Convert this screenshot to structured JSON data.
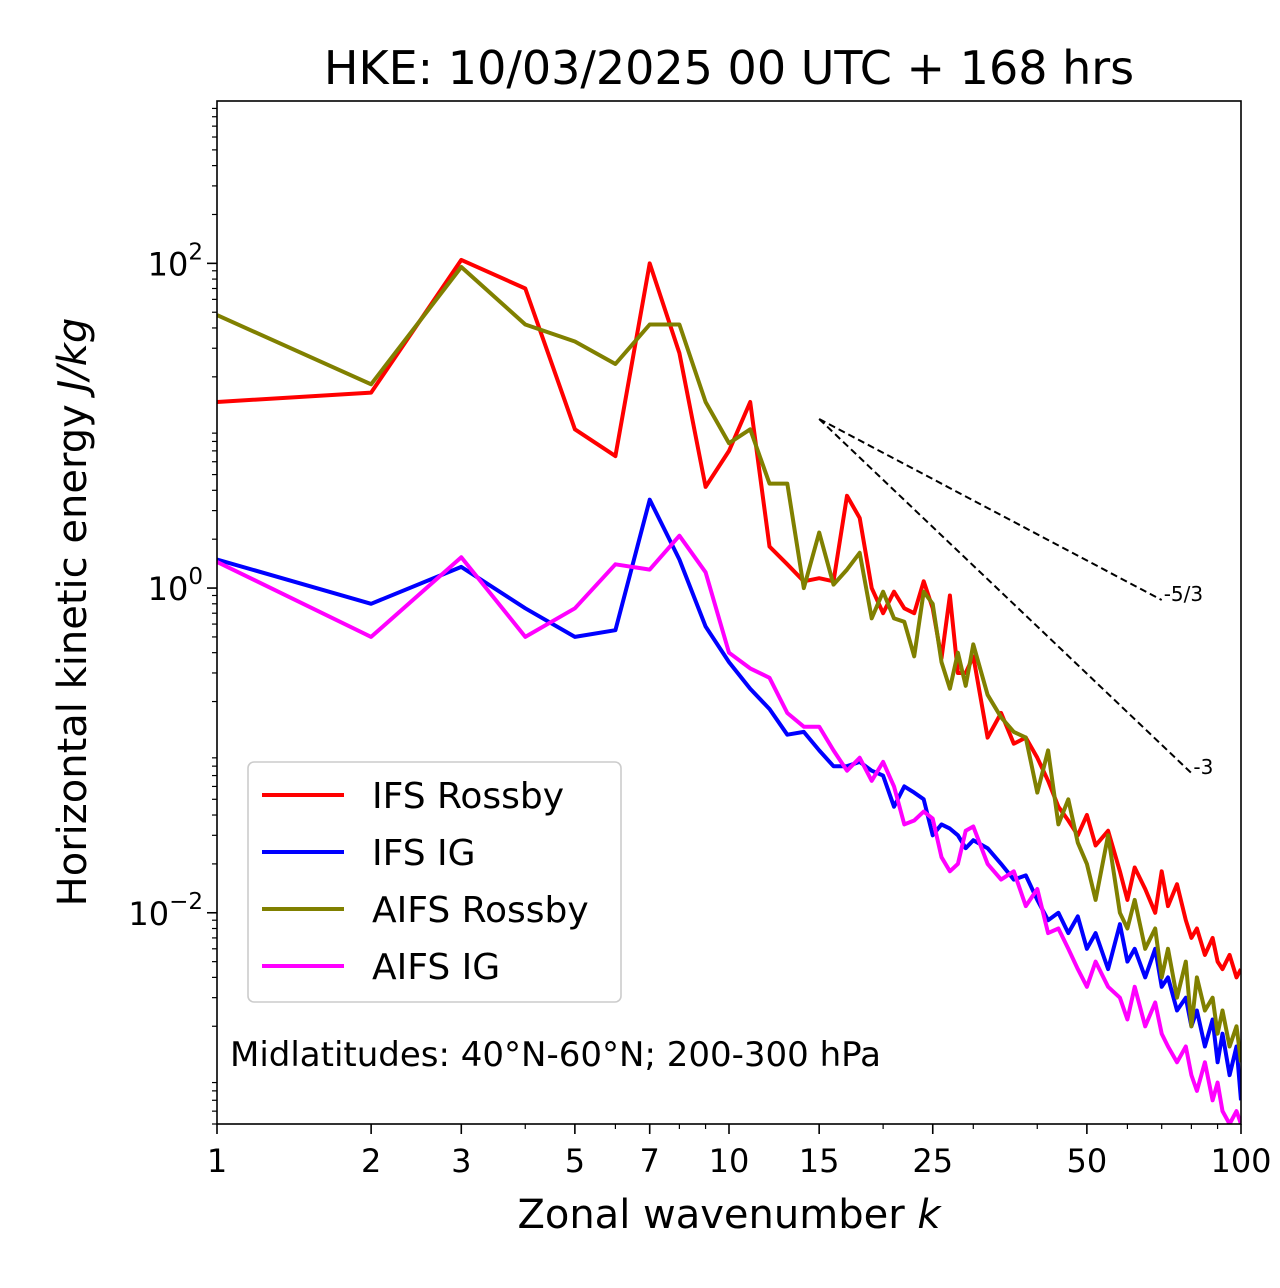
{
  "chart_data": {
    "type": "line",
    "title": "HKE: 10/03/2025 00 UTC + 168 hrs",
    "xlabel": "Zonal wavenumber",
    "xlabel_var": "k",
    "ylabel": "Horizontal kinetic energy",
    "ylabel_unit": "J/kg",
    "x_scale": "log",
    "y_scale": "log",
    "xlim": [
      1,
      100
    ],
    "ylim": [
      0.0005,
      1000
    ],
    "x_ticks": [
      1,
      2,
      3,
      5,
      7,
      10,
      15,
      25,
      50,
      100
    ],
    "x_tick_labels": [
      "1",
      "2",
      "3",
      "5",
      "7",
      "10",
      "15",
      "25",
      "50",
      "100"
    ],
    "y_ticks": [
      {
        "value": 100,
        "base": "10",
        "exp": "2"
      },
      {
        "value": 1,
        "base": "10",
        "exp": "0"
      },
      {
        "value": 0.01,
        "base": "10",
        "exp": "−2"
      }
    ],
    "grid": false,
    "legend_position": "lower-left",
    "annotation": "Midlatitudes: 40°N-60°N; 200-300 hPa",
    "slope_lines": [
      {
        "label": "-5/3",
        "slope": -1.6667,
        "x_start": 15,
        "y_start": 11,
        "x_end": 70
      },
      {
        "label": "-3",
        "slope": -3,
        "x_start": 15,
        "y_start": 11,
        "x_end": 80
      }
    ],
    "series": [
      {
        "name": "IFS Rossby",
        "color": "#ff0000",
        "x": [
          1,
          2,
          3,
          4,
          5,
          6,
          7,
          8,
          9,
          10,
          11,
          12,
          13,
          14,
          15,
          16,
          17,
          18,
          19,
          20,
          21,
          22,
          23,
          24,
          25,
          26,
          27,
          28,
          29,
          30,
          32,
          34,
          36,
          38,
          40,
          42,
          44,
          46,
          48,
          50,
          52,
          55,
          58,
          60,
          62,
          65,
          68,
          70,
          72,
          75,
          78,
          80,
          82,
          85,
          88,
          90,
          92,
          95,
          98,
          100
        ],
        "y": [
          14,
          16,
          105,
          70,
          9.5,
          6.5,
          100,
          28,
          4.2,
          7,
          14,
          1.8,
          1.4,
          1.1,
          1.15,
          1.1,
          3.7,
          2.7,
          1.0,
          0.7,
          0.95,
          0.75,
          0.7,
          1.1,
          0.75,
          0.37,
          0.9,
          0.3,
          0.3,
          0.38,
          0.12,
          0.17,
          0.11,
          0.12,
          0.09,
          0.065,
          0.045,
          0.037,
          0.03,
          0.04,
          0.026,
          0.032,
          0.018,
          0.012,
          0.019,
          0.014,
          0.01,
          0.018,
          0.011,
          0.015,
          0.009,
          0.007,
          0.008,
          0.0055,
          0.007,
          0.005,
          0.0045,
          0.0055,
          0.004,
          0.0045
        ]
      },
      {
        "name": "IFS IG",
        "color": "#0000ff",
        "x": [
          1,
          2,
          3,
          4,
          5,
          6,
          7,
          8,
          9,
          10,
          11,
          12,
          13,
          14,
          15,
          16,
          17,
          18,
          19,
          20,
          21,
          22,
          23,
          24,
          25,
          26,
          27,
          28,
          29,
          30,
          32,
          34,
          36,
          38,
          40,
          42,
          44,
          46,
          48,
          50,
          52,
          55,
          58,
          60,
          62,
          65,
          68,
          70,
          72,
          75,
          78,
          80,
          82,
          85,
          88,
          90,
          92,
          95,
          98,
          100
        ],
        "y": [
          1.5,
          0.8,
          1.35,
          0.75,
          0.5,
          0.55,
          3.5,
          1.5,
          0.58,
          0.35,
          0.24,
          0.18,
          0.125,
          0.13,
          0.1,
          0.08,
          0.08,
          0.085,
          0.075,
          0.07,
          0.045,
          0.06,
          0.055,
          0.05,
          0.03,
          0.035,
          0.033,
          0.03,
          0.025,
          0.028,
          0.025,
          0.02,
          0.016,
          0.017,
          0.012,
          0.009,
          0.01,
          0.0075,
          0.0095,
          0.006,
          0.0075,
          0.0045,
          0.0085,
          0.005,
          0.006,
          0.004,
          0.006,
          0.0035,
          0.004,
          0.0025,
          0.003,
          0.002,
          0.0025,
          0.0015,
          0.0022,
          0.0012,
          0.0018,
          0.001,
          0.0015,
          0.0007
        ]
      },
      {
        "name": "AIFS Rossby",
        "color": "#808000",
        "x": [
          1,
          2,
          3,
          4,
          5,
          6,
          7,
          8,
          9,
          10,
          11,
          12,
          13,
          14,
          15,
          16,
          17,
          18,
          19,
          20,
          21,
          22,
          23,
          24,
          25,
          26,
          27,
          28,
          29,
          30,
          32,
          34,
          36,
          38,
          40,
          42,
          44,
          46,
          48,
          50,
          52,
          55,
          58,
          60,
          62,
          65,
          68,
          70,
          72,
          75,
          78,
          80,
          82,
          85,
          88,
          90,
          92,
          95,
          98,
          100
        ],
        "y": [
          48,
          18,
          95,
          42,
          33,
          24,
          42,
          42,
          14,
          7.8,
          9.5,
          4.4,
          4.4,
          1.0,
          2.2,
          1.05,
          1.3,
          1.65,
          0.65,
          0.95,
          0.65,
          0.62,
          0.38,
          0.95,
          0.8,
          0.35,
          0.24,
          0.4,
          0.25,
          0.45,
          0.22,
          0.16,
          0.13,
          0.12,
          0.055,
          0.1,
          0.035,
          0.05,
          0.027,
          0.02,
          0.012,
          0.03,
          0.01,
          0.008,
          0.012,
          0.006,
          0.008,
          0.004,
          0.006,
          0.003,
          0.005,
          0.002,
          0.004,
          0.0025,
          0.003,
          0.0018,
          0.0025,
          0.0015,
          0.002,
          0.0012
        ]
      },
      {
        "name": "AIFS IG",
        "color": "#ff00ff",
        "x": [
          1,
          2,
          3,
          4,
          5,
          6,
          7,
          8,
          9,
          10,
          11,
          12,
          13,
          14,
          15,
          16,
          17,
          18,
          19,
          20,
          21,
          22,
          23,
          24,
          25,
          26,
          27,
          28,
          29,
          30,
          32,
          34,
          36,
          38,
          40,
          42,
          44,
          46,
          48,
          50,
          52,
          55,
          58,
          60,
          62,
          65,
          68,
          70,
          72,
          75,
          78,
          80,
          82,
          85,
          88,
          90,
          92,
          95,
          98,
          100
        ],
        "y": [
          1.45,
          0.5,
          1.55,
          0.5,
          0.75,
          1.4,
          1.3,
          2.1,
          1.25,
          0.4,
          0.32,
          0.28,
          0.17,
          0.14,
          0.14,
          0.1,
          0.075,
          0.09,
          0.065,
          0.085,
          0.06,
          0.035,
          0.037,
          0.042,
          0.038,
          0.022,
          0.018,
          0.02,
          0.032,
          0.034,
          0.02,
          0.016,
          0.018,
          0.011,
          0.014,
          0.0075,
          0.008,
          0.006,
          0.0045,
          0.0035,
          0.005,
          0.0035,
          0.003,
          0.0022,
          0.0035,
          0.002,
          0.0028,
          0.0018,
          0.0015,
          0.0012,
          0.0015,
          0.001,
          0.0008,
          0.0012,
          0.0007,
          0.0009,
          0.0006,
          0.0005,
          0.0006,
          0.0005
        ]
      }
    ]
  }
}
